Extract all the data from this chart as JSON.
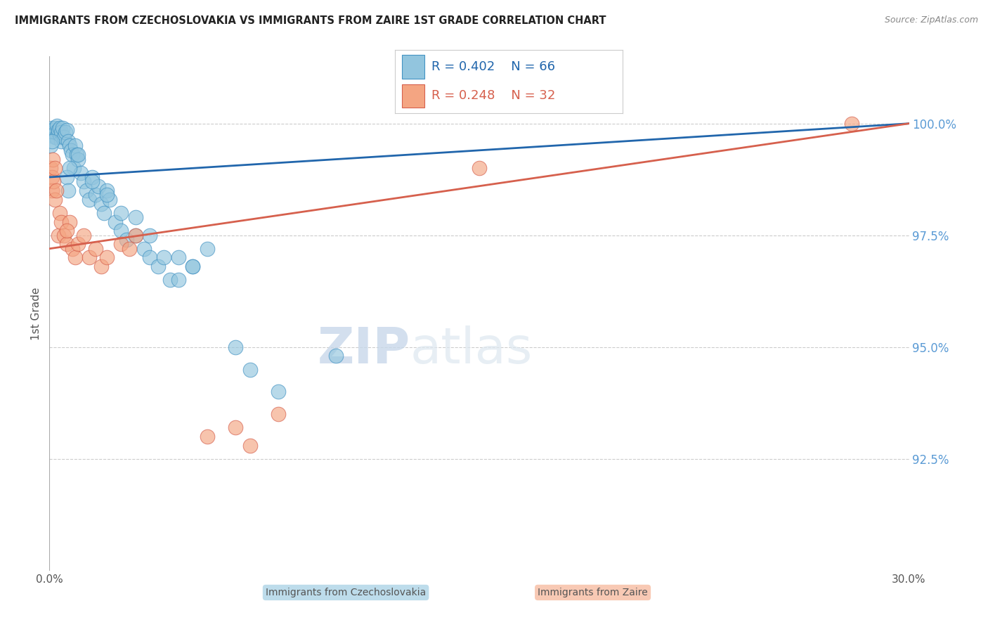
{
  "title": "IMMIGRANTS FROM CZECHOSLOVAKIA VS IMMIGRANTS FROM ZAIRE 1ST GRADE CORRELATION CHART",
  "source": "Source: ZipAtlas.com",
  "ylabel": "1st Grade",
  "legend_r1": "R = 0.402",
  "legend_n1": "N = 66",
  "legend_r2": "R = 0.248",
  "legend_n2": "N = 32",
  "legend_label1": "Immigrants from Czechoslovakia",
  "legend_label2": "Immigrants from Zaire",
  "blue_fill": "#92c5de",
  "blue_edge": "#4393c3",
  "pink_fill": "#f4a582",
  "pink_edge": "#d6604d",
  "blue_line_color": "#2166ac",
  "pink_line_color": "#d6604d",
  "ytick_color": "#5b9bd5",
  "grid_color": "#cccccc",
  "xmin": 0.0,
  "xmax": 30.0,
  "ymin": 90.0,
  "ymax": 101.5,
  "ytick_vals": [
    92.5,
    95.0,
    97.5,
    100.0
  ],
  "watermark_zip": "ZIP",
  "watermark_atlas": "atlas",
  "blue_x": [
    0.1,
    0.12,
    0.15,
    0.18,
    0.2,
    0.22,
    0.25,
    0.27,
    0.3,
    0.32,
    0.35,
    0.38,
    0.4,
    0.42,
    0.45,
    0.5,
    0.55,
    0.6,
    0.65,
    0.7,
    0.75,
    0.8,
    0.85,
    0.9,
    0.95,
    1.0,
    1.1,
    1.2,
    1.3,
    1.4,
    1.5,
    1.6,
    1.7,
    1.8,
    1.9,
    2.0,
    2.1,
    2.3,
    2.5,
    2.7,
    3.0,
    3.3,
    3.5,
    3.8,
    4.2,
    4.5,
    5.0,
    5.5,
    0.05,
    0.08,
    0.6,
    0.65,
    0.7,
    1.0,
    1.5,
    2.0,
    2.5,
    3.0,
    3.5,
    4.0,
    4.5,
    5.0,
    6.5,
    7.0,
    8.0,
    10.0
  ],
  "blue_y": [
    99.9,
    99.8,
    99.85,
    99.7,
    99.9,
    99.8,
    99.7,
    99.95,
    99.8,
    99.85,
    99.9,
    99.7,
    99.6,
    99.8,
    99.9,
    99.7,
    99.8,
    99.85,
    99.6,
    99.5,
    99.4,
    99.3,
    99.0,
    99.5,
    99.3,
    99.2,
    98.9,
    98.7,
    98.5,
    98.3,
    98.8,
    98.4,
    98.6,
    98.2,
    98.0,
    98.5,
    98.3,
    97.8,
    97.6,
    97.4,
    97.5,
    97.2,
    97.0,
    96.8,
    96.5,
    97.0,
    96.8,
    97.2,
    99.5,
    99.6,
    98.8,
    98.5,
    99.0,
    99.3,
    98.7,
    98.4,
    98.0,
    97.9,
    97.5,
    97.0,
    96.5,
    96.8,
    95.0,
    94.5,
    94.0,
    94.8
  ],
  "pink_x": [
    0.05,
    0.08,
    0.1,
    0.12,
    0.15,
    0.18,
    0.2,
    0.25,
    0.3,
    0.35,
    0.4,
    0.5,
    0.6,
    0.7,
    0.8,
    0.9,
    1.0,
    1.2,
    1.4,
    1.6,
    1.8,
    2.0,
    2.5,
    3.0,
    5.5,
    6.5,
    7.0,
    8.0,
    15.0,
    28.0,
    2.8,
    0.6
  ],
  "pink_y": [
    99.0,
    98.8,
    98.5,
    99.2,
    98.7,
    98.3,
    99.0,
    98.5,
    97.5,
    98.0,
    97.8,
    97.5,
    97.3,
    97.8,
    97.2,
    97.0,
    97.3,
    97.5,
    97.0,
    97.2,
    96.8,
    97.0,
    97.3,
    97.5,
    93.0,
    93.2,
    92.8,
    93.5,
    99.0,
    100.0,
    97.2,
    97.6
  ]
}
